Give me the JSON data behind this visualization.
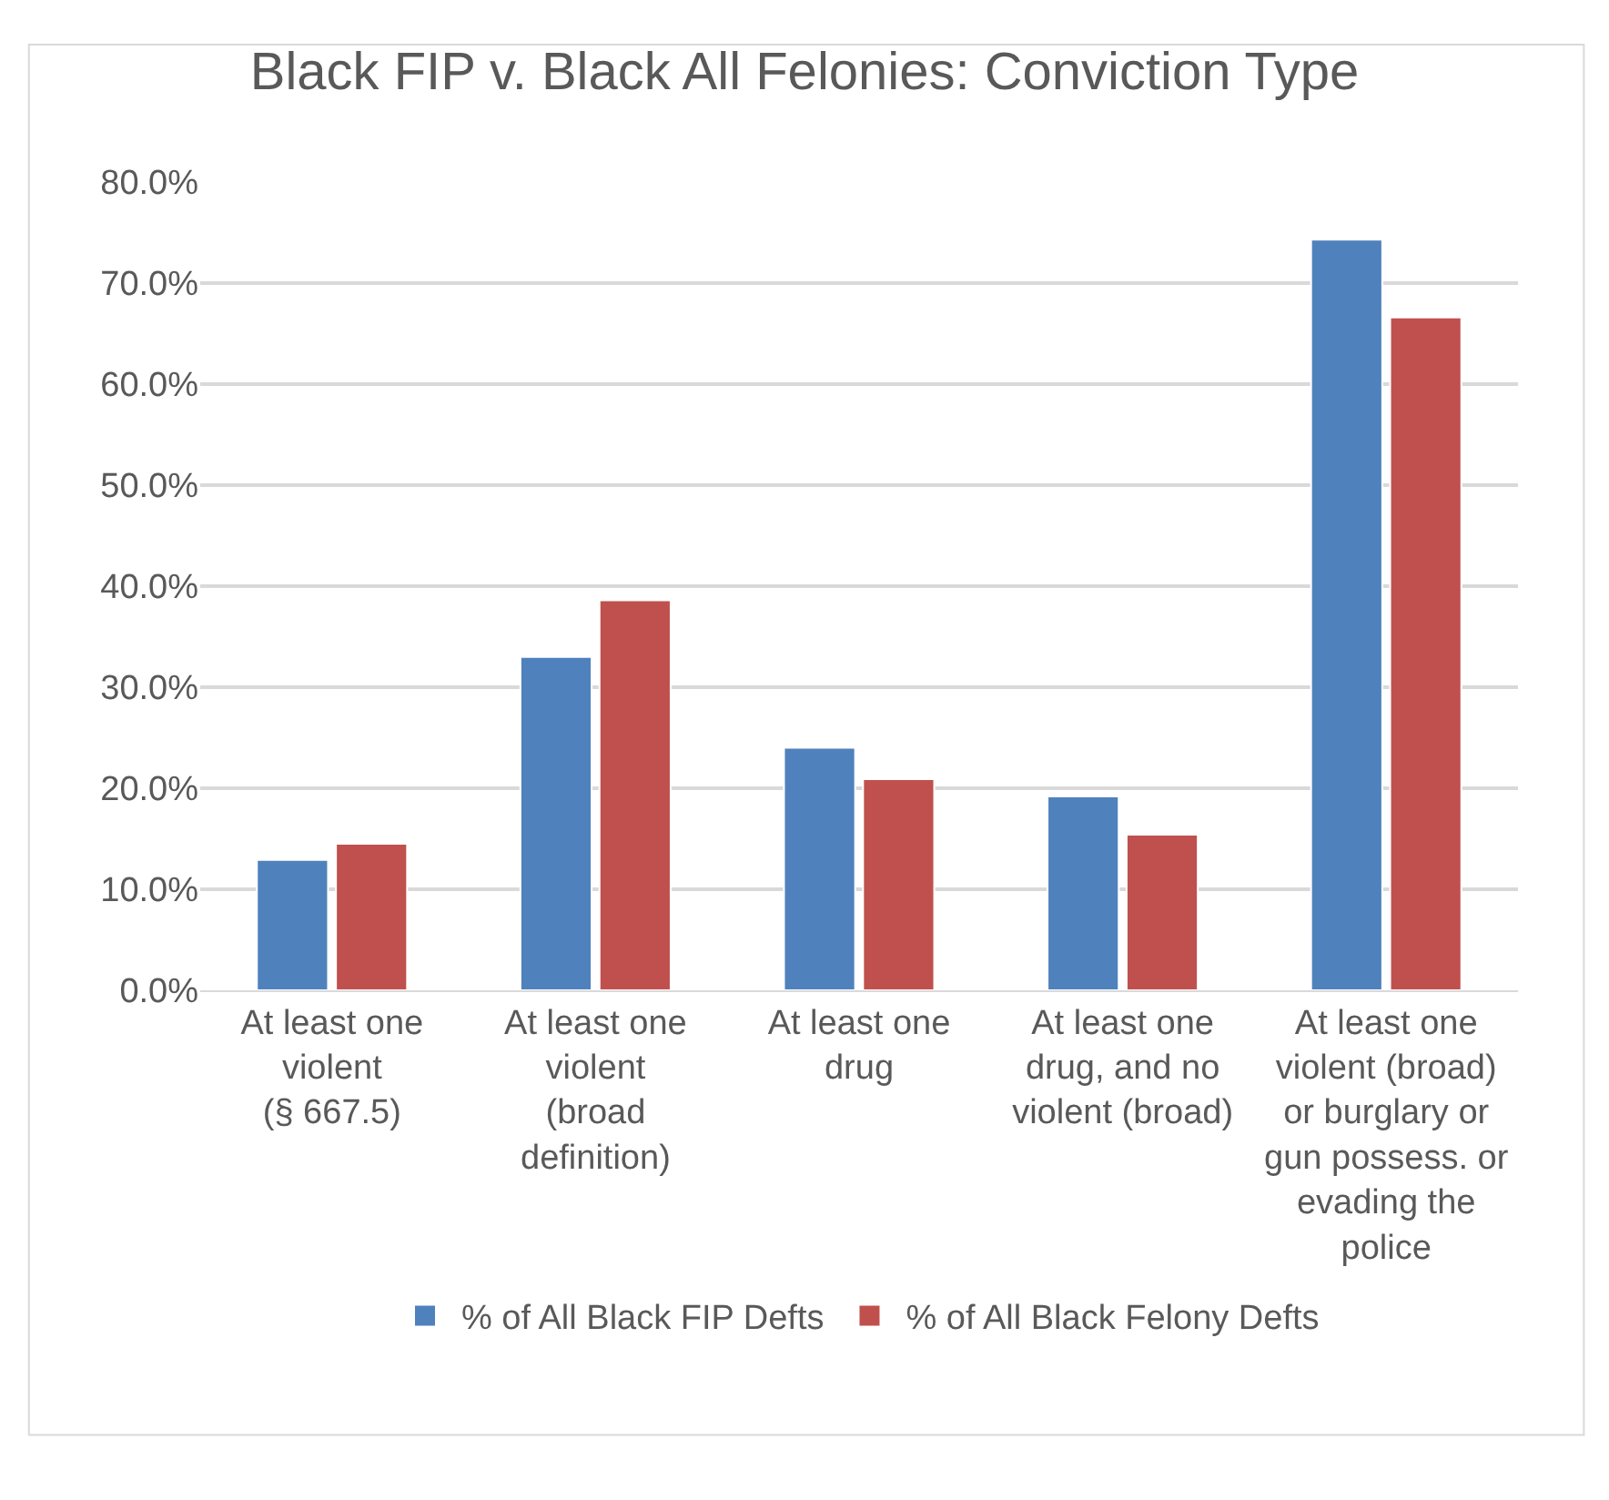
{
  "chart_data": {
    "type": "bar",
    "title": "Black FIP v. Black All Felonies: Conviction Type",
    "categories": [
      "At least one\nviolent\n(§ 667.5)",
      "At least one\nviolent\n(broad\ndefinition)",
      "At least one\ndrug",
      "At least one\ndrug, and no\nviolent (broad)",
      "At least one\nviolent (broad)\nor burglary or\ngun possess. or\nevading the\npolice"
    ],
    "series": [
      {
        "name": "% of All Black FIP Defts",
        "color": "#4f81bd",
        "values": [
          12.9,
          33.0,
          24.0,
          19.2,
          74.3
        ]
      },
      {
        "name": "% of All Black Felony Defts",
        "color": "#c0504d",
        "values": [
          14.5,
          38.6,
          20.9,
          15.4,
          66.6
        ]
      }
    ],
    "ylim": [
      0,
      80
    ],
    "yticks": [
      {
        "value": 0,
        "label": "0.0%"
      },
      {
        "value": 10,
        "label": "10.0%"
      },
      {
        "value": 20,
        "label": "20.0%"
      },
      {
        "value": 30,
        "label": "30.0%"
      },
      {
        "value": 40,
        "label": "40.0%"
      },
      {
        "value": 50,
        "label": "50.0%"
      },
      {
        "value": 60,
        "label": "60.0%"
      },
      {
        "value": 70,
        "label": "70.0%"
      },
      {
        "value": 80,
        "label": "80.0%"
      }
    ],
    "grid": "y",
    "legend": "bottom"
  }
}
